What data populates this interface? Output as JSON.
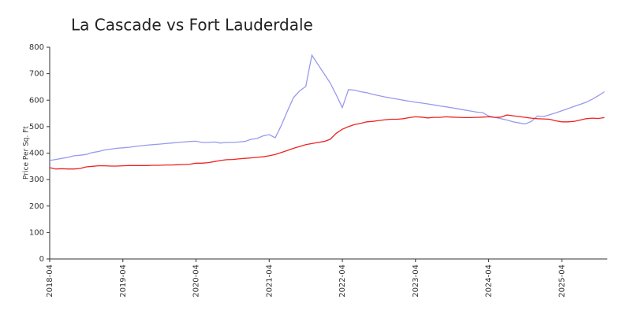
{
  "chart_data": {
    "type": "line",
    "title": "La Cascade vs Fort Lauderdale",
    "y_label": "Price Per Sq. Ft",
    "x": [
      "2018-04",
      "2018-05",
      "2018-06",
      "2018-07",
      "2018-08",
      "2018-09",
      "2018-10",
      "2018-11",
      "2018-12",
      "2019-01",
      "2019-02",
      "2019-03",
      "2019-04",
      "2019-05",
      "2019-06",
      "2019-07",
      "2019-08",
      "2019-09",
      "2019-10",
      "2019-11",
      "2019-12",
      "2020-01",
      "2020-02",
      "2020-03",
      "2020-04",
      "2020-05",
      "2020-06",
      "2020-07",
      "2020-08",
      "2020-09",
      "2020-10",
      "2020-11",
      "2020-12",
      "2021-01",
      "2021-02",
      "2021-03",
      "2021-04",
      "2021-05",
      "2021-06",
      "2021-07",
      "2021-08",
      "2021-09",
      "2021-10",
      "2021-11",
      "2021-12",
      "2022-01",
      "2022-02",
      "2022-03",
      "2022-04",
      "2022-05",
      "2022-06",
      "2022-07",
      "2022-08",
      "2022-09",
      "2022-10",
      "2022-11",
      "2022-12",
      "2023-01",
      "2023-02",
      "2023-03",
      "2023-04",
      "2023-05",
      "2023-06",
      "2023-07",
      "2023-08",
      "2023-09",
      "2023-10",
      "2023-11",
      "2023-12",
      "2024-01",
      "2024-02",
      "2024-03",
      "2024-04",
      "2024-05",
      "2024-06",
      "2024-07",
      "2024-08",
      "2024-09",
      "2024-10",
      "2024-11",
      "2024-12",
      "2025-01",
      "2025-02",
      "2025-03",
      "2025-04",
      "2025-05",
      "2025-06",
      "2025-07",
      "2025-08",
      "2025-09",
      "2025-10",
      "2025-11"
    ],
    "series": [
      {
        "color": "#9999ee",
        "values": [
          372,
          376,
          380,
          384,
          390,
          392,
          395,
          402,
          406,
          412,
          415,
          418,
          420,
          422,
          425,
          428,
          430,
          432,
          434,
          436,
          438,
          440,
          442,
          444,
          445,
          440,
          440,
          442,
          438,
          440,
          440,
          442,
          444,
          452,
          455,
          465,
          470,
          458,
          505,
          560,
          610,
          635,
          652,
          770,
          735,
          700,
          665,
          620,
          572,
          640,
          638,
          632,
          628,
          622,
          617,
          612,
          608,
          604,
          600,
          596,
          592,
          589,
          586,
          582,
          578,
          575,
          571,
          567,
          563,
          559,
          555,
          553,
          540,
          535,
          530,
          525,
          518,
          514,
          510,
          520,
          540,
          538,
          545,
          552,
          560,
          568,
          576,
          584,
          592,
          604,
          617,
          632
        ]
      },
      {
        "color": "#ee2222",
        "values": [
          345,
          340,
          341,
          340,
          340,
          342,
          348,
          350,
          352,
          352,
          351,
          351,
          352,
          353,
          353,
          353,
          353,
          354,
          354,
          355,
          355,
          356,
          357,
          358,
          362,
          362,
          364,
          368,
          372,
          375,
          376,
          378,
          380,
          382,
          384,
          386,
          390,
          395,
          402,
          410,
          418,
          425,
          432,
          436,
          440,
          444,
          452,
          475,
          490,
          500,
          508,
          512,
          518,
          520,
          523,
          526,
          528,
          528,
          530,
          534,
          537,
          536,
          533,
          535,
          535,
          537,
          536,
          535,
          534,
          534,
          535,
          536,
          537,
          535,
          536,
          544,
          541,
          538,
          535,
          532,
          530,
          529,
          528,
          522,
          518,
          518,
          520,
          525,
          530,
          532,
          531,
          534
        ]
      }
    ],
    "xticks": [
      "2018-04",
      "2019-04",
      "2020-04",
      "2021-04",
      "2022-04",
      "2023-04",
      "2024-04",
      "2025-04"
    ],
    "ylim": [
      0,
      800
    ],
    "yticks": [
      0,
      100,
      200,
      300,
      400,
      500,
      600,
      700,
      800
    ],
    "grid": false
  }
}
